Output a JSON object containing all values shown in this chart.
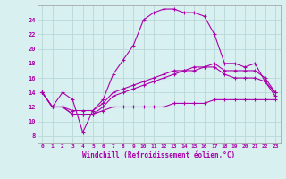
{
  "xlabel": "Windchill (Refroidissement éolien,°C)",
  "background_color": "#d8f0f0",
  "grid_color": "#b8d8d8",
  "line_color": "#aa00aa",
  "x_hours": [
    0,
    1,
    2,
    3,
    4,
    5,
    6,
    7,
    8,
    9,
    10,
    11,
    12,
    13,
    14,
    15,
    16,
    17,
    18,
    19,
    20,
    21,
    22,
    23
  ],
  "ylim": [
    7,
    26
  ],
  "xlim": [
    -0.5,
    23.5
  ],
  "yticks": [
    8,
    10,
    12,
    14,
    16,
    18,
    20,
    22,
    24
  ],
  "series1": [
    14,
    12,
    14,
    13,
    8.5,
    11.5,
    13,
    16.5,
    18.5,
    20.5,
    24,
    25,
    25.5,
    25.5,
    25,
    25,
    24.5,
    22,
    18,
    18,
    17.5,
    18,
    15.5,
    14
  ],
  "series2": [
    14,
    12,
    12,
    11.5,
    11.5,
    11.5,
    12.5,
    14,
    14.5,
    15,
    15.5,
    16,
    16.5,
    17,
    17,
    17.5,
    17.5,
    18,
    17,
    17,
    17,
    17,
    16,
    14
  ],
  "series3": [
    14,
    12,
    12,
    11,
    11,
    11,
    12,
    13.5,
    14,
    14.5,
    15,
    15.5,
    16,
    16.5,
    17,
    17,
    17.5,
    17.5,
    16.5,
    16,
    16,
    16,
    15.5,
    13.5
  ],
  "series4": [
    14,
    12,
    12,
    11,
    11,
    11,
    11.5,
    12,
    12,
    12,
    12,
    12,
    12,
    12.5,
    12.5,
    12.5,
    12.5,
    13,
    13,
    13,
    13,
    13,
    13,
    13
  ]
}
